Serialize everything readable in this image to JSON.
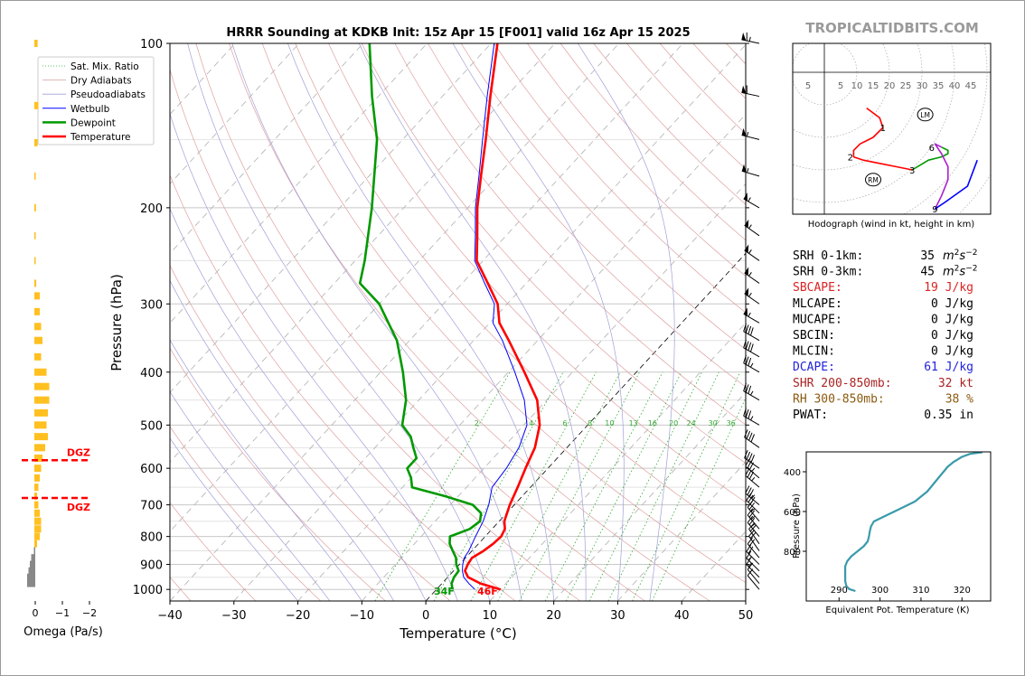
{
  "title": "HRRR Sounding at KDKB Init: 15z Apr 15 [F001] valid 16z Apr 15 2025",
  "brand": "TROPICALTIDBITS.COM",
  "colors": {
    "temperature": "#ff0000",
    "dewpoint": "#009900",
    "wetbulb": "#0000ff",
    "dry_adiabat": "#e0a0a0",
    "moist_adiabat": "#a0a0d8",
    "mixing_ratio": "#33aa33",
    "isotherm": "#aaaaaa",
    "omega_up": "#ffc020",
    "omega_down": "#888888",
    "theta_e": "#3a9aaa"
  },
  "chart_data": [
    {
      "type": "line",
      "name": "skew-t",
      "title": "HRRR Sounding at KDKB Init: 15z Apr 15 [F001] valid 16z Apr 15 2025",
      "xlabel": "Temperature (°C)",
      "ylabel": "Pressure (hPa)",
      "xlim": [
        -40,
        50
      ],
      "ylim": [
        1050,
        100
      ],
      "y_scale": "log",
      "x_ticks": [
        -40,
        -30,
        -20,
        -10,
        0,
        10,
        20,
        30,
        40,
        50
      ],
      "y_ticks": [
        100,
        200,
        300,
        400,
        500,
        600,
        700,
        800,
        900,
        1000
      ],
      "legend": {
        "placement": "top-left",
        "entries": [
          {
            "label": "Sat. Mix. Ratio",
            "color": "#33aa33",
            "style": "dotted"
          },
          {
            "label": "Dry Adiabats",
            "color": "#d0a0a0",
            "style": "solid-thin"
          },
          {
            "label": "Pseudoadiabats",
            "color": "#a0a0d8",
            "style": "solid-thin"
          },
          {
            "label": "Wetbulb",
            "color": "#0000ff",
            "style": "solid"
          },
          {
            "label": "Dewpoint",
            "color": "#009900",
            "style": "solid-thick"
          },
          {
            "label": "Temperature",
            "color": "#ff0000",
            "style": "solid-thick"
          }
        ]
      },
      "mixing_ratio_labels": [
        "2",
        "4",
        "6",
        "8",
        "10",
        "13",
        "16",
        "20",
        "24",
        "30",
        "36"
      ],
      "mixing_ratio_values": [
        2,
        4,
        6,
        8,
        10,
        13,
        16,
        20,
        24,
        30,
        36
      ],
      "surface_labels": {
        "dewpoint": "34F",
        "temperature": "46F"
      },
      "series": [
        {
          "name": "Temperature",
          "points": [
            [
              1000,
              10
            ],
            [
              975,
              6
            ],
            [
              950,
              3.2
            ],
            [
              925,
              1.8
            ],
            [
              900,
              1.3
            ],
            [
              875,
              1.0
            ],
            [
              850,
              1.8
            ],
            [
              825,
              2.3
            ],
            [
              800,
              2.5
            ],
            [
              775,
              2.0
            ],
            [
              750,
              0.8
            ],
            [
              700,
              -0.7
            ],
            [
              650,
              -2.0
            ],
            [
              600,
              -3.5
            ],
            [
              550,
              -5.0
            ],
            [
              500,
              -7.5
            ],
            [
              450,
              -11.5
            ],
            [
              400,
              -17.5
            ],
            [
              350,
              -24.5
            ],
            [
              325,
              -28.5
            ],
            [
              300,
              -31.5
            ],
            [
              275,
              -36.0
            ],
            [
              250,
              -41.0
            ],
            [
              225,
              -44.5
            ],
            [
              200,
              -48.5
            ],
            [
              175,
              -52.5
            ],
            [
              150,
              -57.0
            ],
            [
              125,
              -62.5
            ],
            [
              100,
              -69.0
            ]
          ]
        },
        {
          "name": "Dewpoint",
          "points": [
            [
              1000,
              2.5
            ],
            [
              975,
              1.5
            ],
            [
              950,
              1.0
            ],
            [
              925,
              0.8
            ],
            [
              900,
              -0.5
            ],
            [
              875,
              -1.5
            ],
            [
              850,
              -3.0
            ],
            [
              825,
              -4.5
            ],
            [
              800,
              -5.5
            ],
            [
              775,
              -3.5
            ],
            [
              750,
              -3.0
            ],
            [
              725,
              -4.0
            ],
            [
              700,
              -6.5
            ],
            [
              675,
              -12.0
            ],
            [
              650,
              -18.5
            ],
            [
              625,
              -20.0
            ],
            [
              600,
              -22.0
            ],
            [
              575,
              -22.0
            ],
            [
              550,
              -24.0
            ],
            [
              525,
              -26.0
            ],
            [
              500,
              -29.0
            ],
            [
              450,
              -32.0
            ],
            [
              400,
              -36.5
            ],
            [
              350,
              -42.0
            ],
            [
              300,
              -50.0
            ],
            [
              275,
              -56.0
            ],
            [
              250,
              -58.5
            ],
            [
              200,
              -65.0
            ],
            [
              150,
              -74.0
            ],
            [
              125,
              -81.0
            ],
            [
              100,
              -89.0
            ]
          ]
        },
        {
          "name": "Wetbulb",
          "points": [
            [
              1000,
              6.0
            ],
            [
              975,
              4.2
            ],
            [
              950,
              2.5
            ],
            [
              925,
              1.4
            ],
            [
              900,
              0.5
            ],
            [
              875,
              -0.2
            ],
            [
              850,
              -0.5
            ],
            [
              800,
              -1.5
            ],
            [
              750,
              -2.5
            ],
            [
              700,
              -4.0
            ],
            [
              650,
              -6.0
            ],
            [
              600,
              -6.5
            ],
            [
              550,
              -7.5
            ],
            [
              500,
              -9.5
            ],
            [
              450,
              -13.5
            ],
            [
              400,
              -19.0
            ],
            [
              350,
              -25.5
            ],
            [
              325,
              -29.5
            ],
            [
              300,
              -32.0
            ],
            [
              275,
              -36.5
            ],
            [
              250,
              -41.3
            ],
            [
              225,
              -44.8
            ],
            [
              200,
              -48.8
            ],
            [
              175,
              -52.8
            ],
            [
              150,
              -57.5
            ],
            [
              125,
              -63.0
            ],
            [
              100,
              -69.5
            ]
          ]
        }
      ]
    },
    {
      "type": "bar",
      "name": "omega",
      "xlabel": "Omega (Pa/s)",
      "x_ticks": [
        "0",
        "−1",
        "−2"
      ],
      "dgz_label": "DGZ",
      "dgz_pressures": [
        580,
        680
      ],
      "values": [
        [
          100,
          -0.12
        ],
        [
          130,
          -0.15
        ],
        [
          152,
          -0.12
        ],
        [
          175,
          -0.03
        ],
        [
          200,
          -0.06
        ],
        [
          225,
          -0.04
        ],
        [
          250,
          -0.02
        ],
        [
          275,
          -0.07
        ],
        [
          290,
          -0.2
        ],
        [
          310,
          -0.2
        ],
        [
          330,
          -0.25
        ],
        [
          350,
          -0.3
        ],
        [
          375,
          -0.25
        ],
        [
          400,
          -0.45
        ],
        [
          425,
          -0.55
        ],
        [
          450,
          -0.55
        ],
        [
          475,
          -0.5
        ],
        [
          500,
          -0.45
        ],
        [
          525,
          -0.5
        ],
        [
          550,
          -0.4
        ],
        [
          575,
          -0.3
        ],
        [
          600,
          -0.25
        ],
        [
          625,
          -0.2
        ],
        [
          650,
          -0.15
        ],
        [
          675,
          -0.1
        ],
        [
          700,
          -0.15
        ],
        [
          725,
          -0.2
        ],
        [
          750,
          -0.25
        ],
        [
          775,
          -0.25
        ],
        [
          800,
          -0.2
        ],
        [
          825,
          -0.1
        ],
        [
          850,
          0.05
        ],
        [
          875,
          0.15
        ],
        [
          900,
          0.2
        ],
        [
          925,
          0.25
        ],
        [
          950,
          0.3
        ],
        [
          975,
          0.3
        ]
      ]
    },
    {
      "type": "line",
      "name": "hodograph",
      "xlabel": "Hodograph (wind in kt, height in km)",
      "ring_labels": [
        "5",
        "5",
        "10",
        "15",
        "20",
        "25",
        "30",
        "35",
        "40",
        "45"
      ],
      "ring_label_values": [
        -5,
        5,
        10,
        15,
        20,
        25,
        30,
        35,
        40,
        45
      ],
      "height_labels": [
        {
          "text": "1",
          "u": 18,
          "v": -17
        },
        {
          "text": "2",
          "u": 8,
          "v": -26
        },
        {
          "text": "3",
          "u": 27,
          "v": -30
        },
        {
          "text": "6",
          "u": 33,
          "v": -23
        },
        {
          "text": "9",
          "u": 34,
          "v": -42
        }
      ],
      "lm": {
        "label": "LM",
        "u": 31,
        "v": -13
      },
      "rm": {
        "label": "RM",
        "u": 15,
        "v": -33
      },
      "segments": [
        {
          "color": "#ff0000",
          "points": [
            [
              13,
              -11
            ],
            [
              17,
              -14
            ],
            [
              18,
              -17
            ],
            [
              15,
              -20
            ],
            [
              13,
              -21
            ],
            [
              11,
              -22
            ],
            [
              9,
              -24
            ],
            [
              9,
              -26
            ],
            [
              12,
              -27
            ],
            [
              17,
              -28
            ],
            [
              22,
              -29
            ],
            [
              27,
              -30
            ]
          ]
        },
        {
          "color": "#009900",
          "points": [
            [
              27,
              -30
            ],
            [
              32,
              -27
            ],
            [
              36,
              -26
            ],
            [
              38,
              -25
            ],
            [
              38,
              -24
            ],
            [
              36,
              -23
            ]
          ]
        },
        {
          "color": "#aa22cc",
          "points": [
            [
              36,
              -23
            ],
            [
              34,
              -22
            ],
            [
              36,
              -25
            ],
            [
              38,
              -29
            ],
            [
              38,
              -33
            ],
            [
              36,
              -38
            ],
            [
              35,
              -40
            ],
            [
              34,
              -42
            ]
          ]
        },
        {
          "color": "#0000ff",
          "points": [
            [
              34,
              -42
            ],
            [
              37,
              -40
            ],
            [
              44,
              -35
            ],
            [
              47,
              -27
            ]
          ]
        }
      ]
    },
    {
      "type": "line",
      "name": "theta-e",
      "xlabel": "Equivalent Pot. Temperature (K)",
      "ylabel": "Pressure (hPa)",
      "x_ticks": [
        290,
        300,
        310,
        320
      ],
      "y_ticks": [
        400,
        600,
        800
      ],
      "xlim": [
        282,
        327
      ],
      "ylim": [
        1050,
        300
      ],
      "points": [
        [
          1000,
          294
        ],
        [
          990,
          292.5
        ],
        [
          975,
          291.8
        ],
        [
          950,
          291.5
        ],
        [
          925,
          291.5
        ],
        [
          900,
          291.5
        ],
        [
          875,
          291.5
        ],
        [
          850,
          292
        ],
        [
          825,
          293
        ],
        [
          800,
          294.5
        ],
        [
          775,
          296
        ],
        [
          750,
          297
        ],
        [
          725,
          297.3
        ],
        [
          700,
          297.5
        ],
        [
          675,
          297.8
        ],
        [
          650,
          298.5
        ],
        [
          625,
          301
        ],
        [
          600,
          303.5
        ],
        [
          575,
          306
        ],
        [
          550,
          308.5
        ],
        [
          525,
          310
        ],
        [
          500,
          311.5
        ],
        [
          475,
          312.5
        ],
        [
          450,
          313.5
        ],
        [
          425,
          314.5
        ],
        [
          400,
          315.5
        ],
        [
          375,
          316.5
        ],
        [
          350,
          318
        ],
        [
          325,
          320
        ],
        [
          310,
          322
        ],
        [
          302,
          325
        ]
      ]
    }
  ],
  "stats": [
    {
      "label": "SRH 0-1km:",
      "value": "35",
      "unit_base": "m",
      "unit_sup1": "2",
      "unit_mid": "s",
      "unit_sup2": "−2",
      "color": "#000000"
    },
    {
      "label": "SRH 0-3km:",
      "value": "45",
      "unit_base": "m",
      "unit_sup1": "2",
      "unit_mid": "s",
      "unit_sup2": "−2",
      "color": "#000000"
    },
    {
      "label": "SBCAPE:",
      "value": "19 J/kg",
      "color": "#dd2222"
    },
    {
      "label": "MLCAPE:",
      "value": "0 J/kg",
      "color": "#000000"
    },
    {
      "label": "MUCAPE:",
      "value": "0 J/kg",
      "color": "#000000"
    },
    {
      "label": "SBCIN:",
      "value": "0 J/kg",
      "color": "#000000"
    },
    {
      "label": "MLCIN:",
      "value": "0 J/kg",
      "color": "#000000"
    },
    {
      "label": "DCAPE:",
      "value": "61 J/kg",
      "color": "#2222dd"
    },
    {
      "label": "SHR 200-850mb:",
      "value": "32 kt",
      "color": "#aa2222"
    },
    {
      "label": "RH 300-850mb:",
      "value": "38 %",
      "color": "#8a5a10"
    },
    {
      "label": "PWAT:",
      "value": "0.35 in",
      "color": "#000000"
    }
  ],
  "wind_barbs": [
    {
      "p": 100,
      "spd": 65,
      "dir": 282
    },
    {
      "p": 125,
      "spd": 60,
      "dir": 282
    },
    {
      "p": 150,
      "spd": 55,
      "dir": 284
    },
    {
      "p": 175,
      "spd": 55,
      "dir": 286
    },
    {
      "p": 200,
      "spd": 55,
      "dir": 300
    },
    {
      "p": 225,
      "spd": 55,
      "dir": 305
    },
    {
      "p": 250,
      "spd": 55,
      "dir": 305
    },
    {
      "p": 275,
      "spd": 55,
      "dir": 305
    },
    {
      "p": 300,
      "spd": 55,
      "dir": 305
    },
    {
      "p": 325,
      "spd": 55,
      "dir": 300
    },
    {
      "p": 350,
      "spd": 40,
      "dir": 300
    },
    {
      "p": 375,
      "spd": 40,
      "dir": 300
    },
    {
      "p": 400,
      "spd": 35,
      "dir": 300
    },
    {
      "p": 450,
      "spd": 35,
      "dir": 300
    },
    {
      "p": 500,
      "spd": 35,
      "dir": 300
    },
    {
      "p": 550,
      "spd": 40,
      "dir": 305
    },
    {
      "p": 600,
      "spd": 40,
      "dir": 305
    },
    {
      "p": 625,
      "spd": 35,
      "dir": 310
    },
    {
      "p": 650,
      "spd": 35,
      "dir": 310
    },
    {
      "p": 700,
      "spd": 35,
      "dir": 310
    },
    {
      "p": 725,
      "spd": 30,
      "dir": 315
    },
    {
      "p": 750,
      "spd": 25,
      "dir": 320
    },
    {
      "p": 775,
      "spd": 25,
      "dir": 320
    },
    {
      "p": 800,
      "spd": 25,
      "dir": 320
    },
    {
      "p": 825,
      "spd": 20,
      "dir": 325
    },
    {
      "p": 850,
      "spd": 20,
      "dir": 325
    },
    {
      "p": 875,
      "spd": 20,
      "dir": 320
    },
    {
      "p": 900,
      "spd": 20,
      "dir": 315
    },
    {
      "p": 925,
      "spd": 15,
      "dir": 315
    },
    {
      "p": 950,
      "spd": 15,
      "dir": 315
    },
    {
      "p": 975,
      "spd": 10,
      "dir": 320
    },
    {
      "p": 1000,
      "spd": 10,
      "dir": 320
    }
  ]
}
